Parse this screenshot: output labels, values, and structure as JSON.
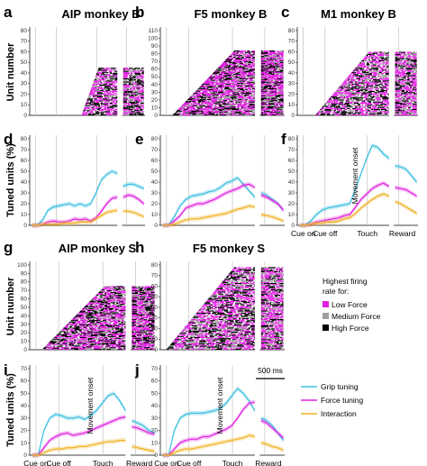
{
  "chart_data": {
    "type": "multi-panel",
    "event_labels": [
      "Cue on",
      "Cue off",
      "Touch",
      "Reward"
    ],
    "scale_bar_label": "500 ms",
    "movement_onset_label": "Movement onset",
    "raster_legend": {
      "title": [
        "Highest firing",
        "rate for:"
      ],
      "items": [
        {
          "label": "Low Force",
          "color": "#e020e0"
        },
        {
          "label": "Medium Force",
          "color": "#a0a0a0"
        },
        {
          "label": "High Force",
          "color": "#000000"
        }
      ]
    },
    "line_legend": [
      {
        "label": "Grip tuning",
        "color": "#3cc0e0"
      },
      {
        "label": "Force tuning",
        "color": "#e020e0"
      },
      {
        "label": "Interaction",
        "color": "#f0b020"
      }
    ],
    "panels": [
      {
        "id": "a",
        "label": "a",
        "kind": "raster",
        "title": "AIP monkey B",
        "ylabel": "Unit number",
        "yticks": [
          0,
          10,
          20,
          30,
          40,
          50,
          60,
          70,
          80
        ],
        "units": 45,
        "start_frac": 0.45
      },
      {
        "id": "b",
        "label": "b",
        "kind": "raster",
        "title": "F5 monkey B",
        "ylabel": "",
        "yticks": [
          0,
          10,
          20,
          30,
          40,
          50,
          60,
          70,
          80,
          90,
          100,
          110
        ],
        "units": 84,
        "start_frac": 0.1
      },
      {
        "id": "c",
        "label": "c",
        "kind": "raster",
        "title": "M1 monkey B",
        "ylabel": "",
        "yticks": [
          0,
          10,
          20,
          30,
          40,
          50,
          60,
          70,
          80
        ],
        "units": 60,
        "start_frac": 0.15
      },
      {
        "id": "d",
        "label": "d",
        "kind": "line",
        "ylabel": "Tuned units (%)",
        "yticks": [
          0,
          10,
          20,
          30,
          40,
          50,
          60,
          70,
          80
        ],
        "series": [
          {
            "name": "Grip tuning",
            "color": "#3cc0e0",
            "main": [
              0,
              0,
              5,
              14,
              17,
              18,
              19,
              20,
              18,
              20,
              18,
              20,
              30,
              42,
              47,
              50,
              48
            ],
            "reward": [
              36,
              38,
              38,
              36,
              34
            ]
          },
          {
            "name": "Force tuning",
            "color": "#e020e0",
            "main": [
              0,
              0,
              1,
              3,
              4,
              3,
              3,
              4,
              6,
              5,
              6,
              4,
              7,
              13,
              20,
              25,
              26
            ],
            "reward": [
              26,
              28,
              27,
              24,
              20
            ]
          },
          {
            "name": "Interaction",
            "color": "#f0b020",
            "main": [
              0,
              0,
              1,
              1,
              1,
              1,
              2,
              2,
              2,
              3,
              3,
              3,
              6,
              9,
              12,
              13,
              14
            ],
            "reward": [
              13,
              13,
              12,
              10,
              8
            ]
          }
        ]
      },
      {
        "id": "e",
        "label": "e",
        "kind": "line",
        "ylabel": "",
        "yticks": [
          0,
          10,
          20,
          30,
          40,
          50,
          60,
          70,
          80
        ],
        "series": [
          {
            "name": "Grip tuning",
            "color": "#3cc0e0",
            "main": [
              0,
              0,
              8,
              18,
              24,
              27,
              28,
              29,
              31,
              32,
              35,
              39,
              41,
              44,
              38,
              32,
              26
            ],
            "reward": [
              30,
              28,
              24,
              20,
              14
            ]
          },
          {
            "name": "Force tuning",
            "color": "#e020e0",
            "main": [
              0,
              0,
              4,
              9,
              16,
              18,
              20,
              20,
              22,
              24,
              27,
              30,
              32,
              34,
              37,
              38,
              35
            ],
            "reward": [
              28,
              26,
              23,
              20,
              14
            ]
          },
          {
            "name": "Interaction",
            "color": "#f0b020",
            "main": [
              0,
              0,
              1,
              3,
              5,
              6,
              6,
              7,
              8,
              9,
              10,
              11,
              13,
              15,
              16,
              18,
              17
            ],
            "reward": [
              10,
              9,
              8,
              6,
              4
            ]
          }
        ]
      },
      {
        "id": "f",
        "label": "f",
        "kind": "line",
        "ylabel": "",
        "yticks": [
          0,
          10,
          20,
          30,
          40,
          50,
          60,
          70,
          80
        ],
        "annotate_onset": true,
        "series": [
          {
            "name": "Grip tuning",
            "color": "#3cc0e0",
            "main": [
              0,
              0,
              4,
              10,
              14,
              16,
              17,
              18,
              19,
              20,
              34,
              48,
              62,
              74,
              72,
              66,
              62
            ],
            "reward": [
              55,
              54,
              52,
              46,
              40
            ]
          },
          {
            "name": "Force tuning",
            "color": "#e020e0",
            "main": [
              0,
              0,
              1,
              3,
              4,
              5,
              6,
              7,
              9,
              10,
              17,
              24,
              29,
              34,
              37,
              39,
              36
            ],
            "reward": [
              35,
              34,
              33,
              30,
              27
            ]
          },
          {
            "name": "Interaction",
            "color": "#f0b020",
            "main": [
              0,
              0,
              1,
              2,
              2,
              3,
              3,
              4,
              6,
              7,
              11,
              16,
              20,
              24,
              27,
              29,
              27
            ],
            "reward": [
              22,
              20,
              17,
              14,
              11
            ]
          }
        ]
      },
      {
        "id": "g",
        "label": "g",
        "kind": "raster",
        "title": "AIP monkey S",
        "ylabel": "Unit number",
        "yticks": [
          0,
          10,
          20,
          30,
          40,
          50,
          60,
          70,
          80,
          90,
          100
        ],
        "units": 75,
        "start_frac": 0.1
      },
      {
        "id": "h",
        "label": "h",
        "kind": "raster",
        "title": "F5 monkey S",
        "ylabel": "",
        "yticks": [
          0,
          10,
          20,
          30,
          40,
          50,
          60,
          70,
          80
        ],
        "units": 78,
        "start_frac": 0.05
      },
      {
        "id": "i",
        "label": "i",
        "kind": "line",
        "ylabel": "Tuned units (%)",
        "yticks": [
          0,
          10,
          20,
          30,
          40,
          50,
          60,
          70
        ],
        "annotate_onset": true,
        "series": [
          {
            "name": "Grip tuning",
            "color": "#3cc0e0",
            "main": [
              0,
              0,
              20,
              30,
              33,
              32,
              30,
              30,
              31,
              29,
              32,
              36,
              42,
              48,
              50,
              44,
              36
            ],
            "reward": [
              28,
              26,
              24,
              20,
              18
            ]
          },
          {
            "name": "Force tuning",
            "color": "#e020e0",
            "main": [
              0,
              0,
              6,
              12,
              15,
              17,
              18,
              16,
              17,
              18,
              20,
              22,
              24,
              26,
              28,
              30,
              31
            ],
            "reward": [
              23,
              22,
              20,
              18,
              17
            ]
          },
          {
            "name": "Interaction",
            "color": "#f0b020",
            "main": [
              0,
              0,
              2,
              4,
              5,
              5,
              6,
              6,
              7,
              7,
              8,
              9,
              10,
              11,
              11,
              12,
              12
            ],
            "reward": [
              7,
              6,
              5,
              4,
              3
            ]
          }
        ]
      },
      {
        "id": "j",
        "label": "j",
        "kind": "line",
        "ylabel": "",
        "yticks": [
          0,
          10,
          20,
          30,
          40,
          50,
          60,
          70
        ],
        "annotate_onset": true,
        "series": [
          {
            "name": "Grip tuning",
            "color": "#3cc0e0",
            "main": [
              0,
              0,
              20,
              30,
              33,
              34,
              34,
              34,
              35,
              36,
              38,
              42,
              48,
              54,
              50,
              44,
              36
            ],
            "reward": [
              30,
              28,
              24,
              18,
              12
            ]
          },
          {
            "name": "Force tuning",
            "color": "#e020e0",
            "main": [
              0,
              0,
              5,
              10,
              12,
              13,
              13,
              15,
              15,
              17,
              19,
              21,
              24,
              30,
              37,
              42,
              43
            ],
            "reward": [
              28,
              26,
              22,
              18,
              14
            ]
          },
          {
            "name": "Interaction",
            "color": "#f0b020",
            "main": [
              0,
              0,
              2,
              4,
              5,
              5,
              6,
              7,
              8,
              9,
              10,
              11,
              12,
              13,
              14,
              16,
              15
            ],
            "reward": [
              10,
              9,
              7,
              6,
              4
            ]
          }
        ]
      }
    ]
  }
}
